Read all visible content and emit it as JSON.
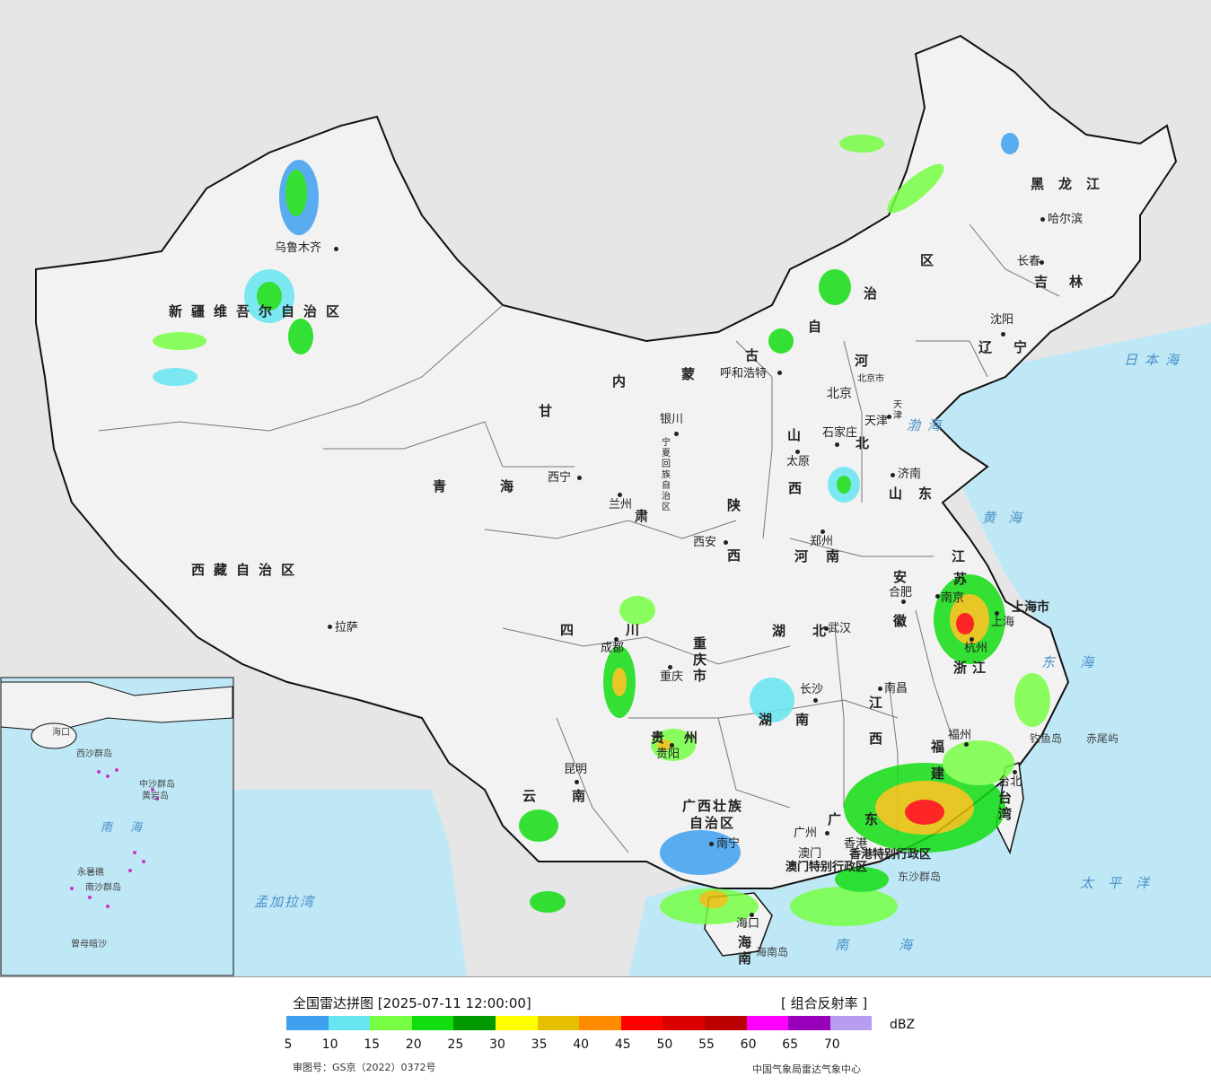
{
  "title": "全国雷达拼图 [2025-07-11 12:00:00]",
  "product": "[ 组合反射率 ]",
  "unit": "dBZ",
  "approval_no": "审图号：GS京（2022）0372号",
  "organization": "中国气象局雷达气象中心",
  "legend": {
    "colors": [
      "#3fa0f0",
      "#66e6f0",
      "#77ff44",
      "#11dd11",
      "#009900",
      "#ffff00",
      "#e6c000",
      "#ff8c00",
      "#ff0000",
      "#dd0000",
      "#bb0000",
      "#ff00ff",
      "#9900bb",
      "#b79df0"
    ],
    "ticks": [
      "5",
      "10",
      "15",
      "20",
      "25",
      "30",
      "35",
      "40",
      "45",
      "50",
      "55",
      "60",
      "65",
      "70"
    ]
  },
  "provinces": [
    {
      "name": "新疆维吾尔自治区"
    },
    {
      "name": "西藏自治区"
    },
    {
      "name": "青海"
    },
    {
      "name": "甘"
    },
    {
      "name": "肃"
    },
    {
      "name": "内"
    },
    {
      "name": "蒙"
    },
    {
      "name": "古"
    },
    {
      "name": "自"
    },
    {
      "name": "治"
    },
    {
      "name": "区"
    },
    {
      "name": "黑龙江"
    },
    {
      "name": "吉林"
    },
    {
      "name": "辽宁"
    },
    {
      "name": "河"
    },
    {
      "name": "北"
    },
    {
      "name": "山"
    },
    {
      "name": "西"
    },
    {
      "name": "山东"
    },
    {
      "name": "陕"
    },
    {
      "name": "西"
    },
    {
      "name": "河南"
    },
    {
      "name": "江"
    },
    {
      "name": "苏"
    },
    {
      "name": "安"
    },
    {
      "name": "徽"
    },
    {
      "name": "四"
    },
    {
      "name": "川"
    },
    {
      "name": "湖北"
    },
    {
      "name": "浙江"
    },
    {
      "name": "重庆市"
    },
    {
      "name": "江"
    },
    {
      "name": "西"
    },
    {
      "name": "湖南"
    },
    {
      "name": "贵州"
    },
    {
      "name": "福建"
    },
    {
      "name": "云南"
    },
    {
      "name": "广西壮族"
    },
    {
      "name": "自治区"
    },
    {
      "name": "广东"
    },
    {
      "name": "海南"
    },
    {
      "name": "台湾"
    },
    {
      "name": "上海市"
    },
    {
      "name": "宁夏回族自治区"
    },
    {
      "name": "北京市"
    },
    {
      "name": "天津"
    },
    {
      "name": "香港特别行政区"
    },
    {
      "name": "澳门特别行政区"
    }
  ],
  "cities": [
    "乌鲁木齐",
    "拉萨",
    "西宁",
    "兰州",
    "银川",
    "呼和浩特",
    "北京",
    "天津",
    "石家庄",
    "太原",
    "济南",
    "西安",
    "郑州",
    "合肥",
    "南京",
    "上海",
    "杭州",
    "武汉",
    "成都",
    "重庆",
    "长沙",
    "南昌",
    "福州",
    "贵阳",
    "昆明",
    "南宁",
    "广州",
    "香港",
    "澳门",
    "海口",
    "台北",
    "沈阳",
    "长春",
    "哈尔滨"
  ],
  "seas": [
    "日本海",
    "渤海",
    "黄海",
    "东海",
    "太平洋",
    "南海",
    "孟加拉湾"
  ],
  "islands": [
    "钓鱼岛",
    "赤尾屿",
    "东沙群岛",
    "海南岛"
  ],
  "inset": {
    "labels": [
      "南海",
      "中沙群岛",
      "黄岩岛",
      "西沙群岛",
      "南沙群岛",
      "曾母暗沙",
      "永暑礁",
      "海口"
    ]
  }
}
